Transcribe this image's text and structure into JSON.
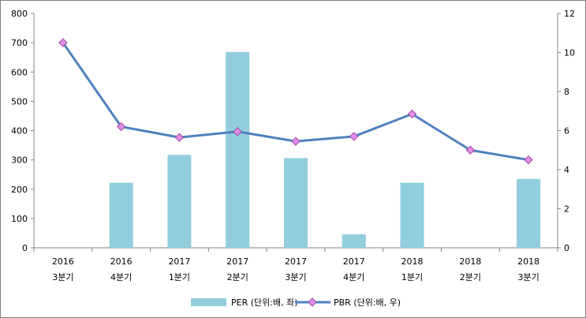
{
  "chart_data": {
    "type": "bar",
    "title": "",
    "xlabel": "",
    "ylabel": "",
    "categories": [
      [
        "2016",
        "3분기"
      ],
      [
        "2016",
        "4분기"
      ],
      [
        "2017",
        "1분기"
      ],
      [
        "2017",
        "2분기"
      ],
      [
        "2017",
        "3분기"
      ],
      [
        "2017",
        "4분기"
      ],
      [
        "2018",
        "1분기"
      ],
      [
        "2018",
        "2분기"
      ],
      [
        "2018",
        "3분기"
      ]
    ],
    "series": [
      {
        "name": "PER (단위:배, 좌)",
        "type": "bar",
        "axis": "left",
        "color": "#92cddc",
        "values": [
          null,
          222,
          317,
          668,
          306,
          46,
          222,
          null,
          235
        ]
      },
      {
        "name": "PBR (단위:배, 우)",
        "type": "line",
        "axis": "right",
        "color": "#4f81bd",
        "marker_color": "#e08fe8",
        "values": [
          10.5,
          6.2,
          5.65,
          5.95,
          5.45,
          5.7,
          6.85,
          5.0,
          4.5
        ]
      }
    ],
    "y_left": {
      "ylim": [
        0,
        800
      ],
      "ticks": [
        0,
        100,
        200,
        300,
        400,
        500,
        600,
        700,
        800
      ]
    },
    "y_right": {
      "ylim": [
        0,
        12
      ],
      "ticks": [
        0,
        2,
        4,
        6,
        8,
        10,
        12
      ]
    },
    "grid": false,
    "legend_position": "bottom"
  }
}
